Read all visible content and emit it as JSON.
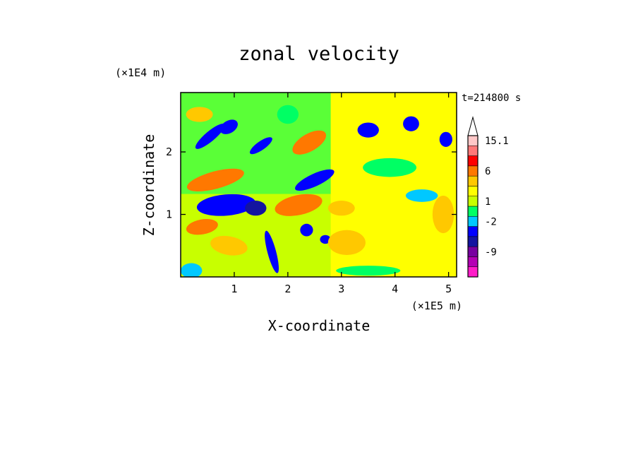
{
  "chart_data": {
    "type": "heatmap",
    "title": "zonal velocity",
    "xlabel": "X-coordinate",
    "ylabel": "Z-coordinate",
    "x_scale_label": "(×1E5 m)",
    "y_scale_label": "(×1E4 m)",
    "time_label": "t=214800 s",
    "xlim": [
      0,
      5.15
    ],
    "ylim": [
      0,
      2.95
    ],
    "x_ticks": [
      {
        "value": 1,
        "label": "1"
      },
      {
        "value": 2,
        "label": "2"
      },
      {
        "value": 3,
        "label": "3"
      },
      {
        "value": 4,
        "label": "4"
      },
      {
        "value": 5,
        "label": "5"
      }
    ],
    "y_ticks": [
      {
        "value": 1,
        "label": "1"
      },
      {
        "value": 2,
        "label": "2"
      }
    ],
    "colorbar": {
      "levels": [
        {
          "color": "#ff1cc8",
          "label": ""
        },
        {
          "color": "#b400b4",
          "label": ""
        },
        {
          "color": "#7800a0",
          "label": "-9"
        },
        {
          "color": "#1414a0",
          "label": ""
        },
        {
          "color": "#0000ff",
          "label": ""
        },
        {
          "color": "#00c8ff",
          "label": "-2"
        },
        {
          "color": "#00ff64",
          "label": ""
        },
        {
          "color": "#c8ff00",
          "label": "1"
        },
        {
          "color": "#ffff00",
          "label": ""
        },
        {
          "color": "#ffc800",
          "label": ""
        },
        {
          "color": "#ff7800",
          "label": "6"
        },
        {
          "color": "#ff0000",
          "label": ""
        },
        {
          "color": "#ff7878",
          "label": ""
        },
        {
          "color": "#ffc8c8",
          "label": "15.1"
        }
      ]
    },
    "features": [
      {
        "type": "ellipse",
        "cx": 0.85,
        "cy": 1.15,
        "rx": 0.55,
        "ry": 0.17,
        "rot": -5,
        "level": 4
      },
      {
        "type": "ellipse",
        "cx": 1.4,
        "cy": 1.1,
        "rx": 0.2,
        "ry": 0.12,
        "rot": 0,
        "level": 3
      },
      {
        "type": "ellipse",
        "cx": 2.2,
        "cy": 1.15,
        "rx": 0.45,
        "ry": 0.16,
        "rot": -12,
        "level": 10
      },
      {
        "type": "ellipse",
        "cx": 2.5,
        "cy": 1.55,
        "rx": 0.4,
        "ry": 0.1,
        "rot": -25,
        "level": 4
      },
      {
        "type": "ellipse",
        "cx": 0.65,
        "cy": 1.55,
        "rx": 0.55,
        "ry": 0.14,
        "rot": -15,
        "level": 10
      },
      {
        "type": "ellipse",
        "cx": 0.55,
        "cy": 2.25,
        "rx": 0.35,
        "ry": 0.08,
        "rot": -40,
        "level": 4
      },
      {
        "type": "ellipse",
        "cx": 0.9,
        "cy": 2.4,
        "rx": 0.18,
        "ry": 0.1,
        "rot": -30,
        "level": 4
      },
      {
        "type": "ellipse",
        "cx": 1.5,
        "cy": 2.1,
        "rx": 0.25,
        "ry": 0.07,
        "rot": -35,
        "level": 4
      },
      {
        "type": "ellipse",
        "cx": 2.4,
        "cy": 2.15,
        "rx": 0.35,
        "ry": 0.14,
        "rot": -30,
        "level": 10
      },
      {
        "type": "ellipse",
        "cx": 3.5,
        "cy": 2.35,
        "rx": 0.2,
        "ry": 0.12,
        "rot": 0,
        "level": 4
      },
      {
        "type": "ellipse",
        "cx": 4.3,
        "cy": 2.45,
        "rx": 0.15,
        "ry": 0.12,
        "rot": 0,
        "level": 4
      },
      {
        "type": "ellipse",
        "cx": 4.95,
        "cy": 2.2,
        "rx": 0.12,
        "ry": 0.12,
        "rot": 0,
        "level": 4
      },
      {
        "type": "ellipse",
        "cx": 2.35,
        "cy": 0.75,
        "rx": 0.12,
        "ry": 0.1,
        "rot": 0,
        "level": 4
      },
      {
        "type": "ellipse",
        "cx": 2.7,
        "cy": 0.6,
        "rx": 0.1,
        "ry": 0.07,
        "rot": 0,
        "level": 4
      },
      {
        "type": "ellipse",
        "cx": 1.7,
        "cy": 0.4,
        "rx": 0.08,
        "ry": 0.35,
        "rot": -15,
        "level": 4
      },
      {
        "type": "ellipse",
        "cx": 0.4,
        "cy": 0.8,
        "rx": 0.3,
        "ry": 0.12,
        "rot": -10,
        "level": 10
      },
      {
        "type": "ellipse",
        "cx": 0.9,
        "cy": 0.5,
        "rx": 0.35,
        "ry": 0.15,
        "rot": 10,
        "level": 9
      },
      {
        "type": "ellipse",
        "cx": 3.1,
        "cy": 0.55,
        "rx": 0.35,
        "ry": 0.2,
        "rot": 0,
        "level": 9
      },
      {
        "type": "ellipse",
        "cx": 4.9,
        "cy": 1.0,
        "rx": 0.2,
        "ry": 0.3,
        "rot": 0,
        "level": 9
      },
      {
        "type": "ellipse",
        "cx": 3.9,
        "cy": 1.75,
        "rx": 0.5,
        "ry": 0.15,
        "rot": 0,
        "level": 6
      },
      {
        "type": "ellipse",
        "cx": 4.5,
        "cy": 1.3,
        "rx": 0.3,
        "ry": 0.1,
        "rot": 0,
        "level": 5
      },
      {
        "type": "ellipse",
        "cx": 0.2,
        "cy": 0.1,
        "rx": 0.2,
        "ry": 0.12,
        "rot": 0,
        "level": 5
      },
      {
        "type": "ellipse",
        "cx": 3.5,
        "cy": 0.1,
        "rx": 0.6,
        "ry": 0.08,
        "rot": 0,
        "level": 6
      },
      {
        "type": "ellipse",
        "cx": 0.35,
        "cy": 2.6,
        "rx": 0.25,
        "ry": 0.12,
        "rot": 0,
        "level": 9
      },
      {
        "type": "ellipse",
        "cx": 2.0,
        "cy": 2.6,
        "rx": 0.2,
        "ry": 0.15,
        "rot": 0,
        "level": 6
      },
      {
        "type": "ellipse",
        "cx": 4.1,
        "cy": 0.5,
        "rx": 0.4,
        "ry": 0.2,
        "rot": 0,
        "level": 8
      },
      {
        "type": "ellipse",
        "cx": 3.0,
        "cy": 1.1,
        "rx": 0.25,
        "ry": 0.12,
        "rot": 0,
        "level": 9
      }
    ]
  }
}
